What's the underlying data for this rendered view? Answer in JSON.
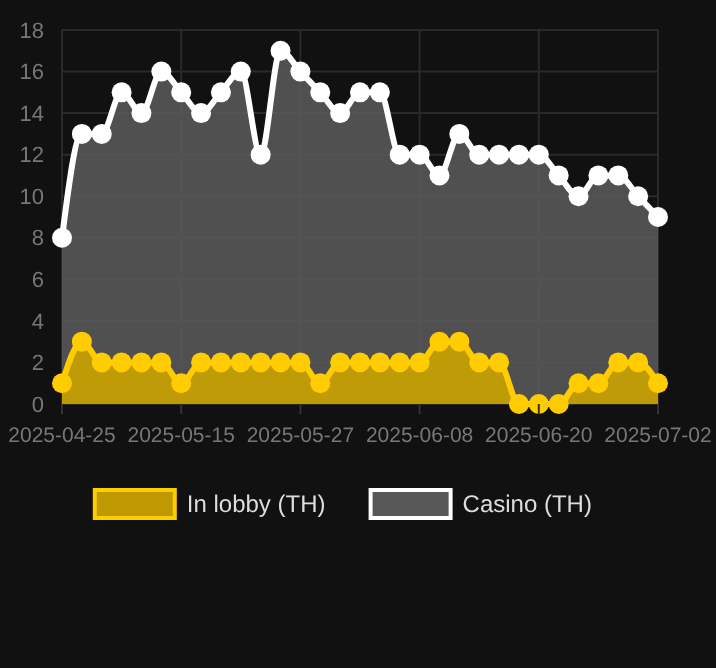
{
  "chart_data": {
    "type": "area",
    "categories": [
      "2025-04-25",
      null,
      null,
      null,
      null,
      null,
      "2025-05-15",
      null,
      null,
      null,
      null,
      null,
      "2025-05-27",
      null,
      null,
      null,
      null,
      null,
      "2025-06-08",
      null,
      null,
      null,
      null,
      null,
      "2025-06-20",
      null,
      null,
      null,
      null,
      null,
      "2025-07-02"
    ],
    "series": [
      {
        "name": "In lobby (TH)",
        "color": "#ffcc00",
        "values": [
          1,
          3,
          2,
          2,
          2,
          2,
          1,
          2,
          2,
          2,
          2,
          2,
          2,
          1,
          2,
          2,
          2,
          2,
          2,
          3,
          3,
          2,
          2,
          0,
          0,
          0,
          1,
          1,
          2,
          2,
          1
        ]
      },
      {
        "name": "Casino (TH)",
        "color": "#ffffff",
        "values": [
          8,
          13,
          13,
          15,
          14,
          16,
          15,
          14,
          15,
          16,
          12,
          17,
          16,
          15,
          14,
          15,
          15,
          12,
          12,
          11,
          13,
          12,
          12,
          12,
          12,
          11,
          10,
          11,
          11,
          10,
          9
        ]
      }
    ],
    "ylim": [
      0,
      18
    ],
    "yticks": [
      0,
      2,
      4,
      6,
      8,
      10,
      12,
      14,
      16,
      18
    ],
    "grid": true,
    "legend": "bottom",
    "marker": "circle"
  }
}
